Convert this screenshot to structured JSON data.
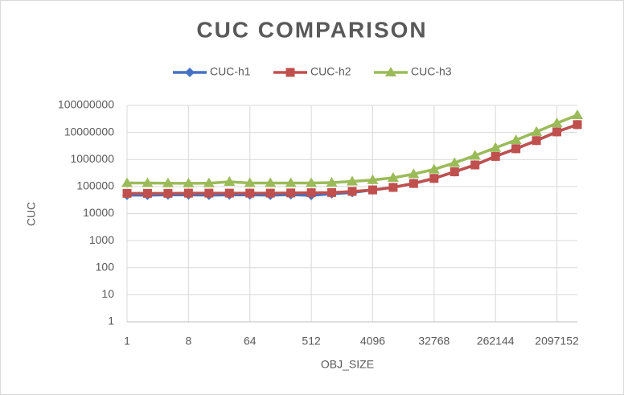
{
  "chart_data": {
    "type": "line",
    "title": "CUC COMPARISON",
    "x_label": "OBJ_SIZE",
    "y_label": "CUC",
    "categories": [
      1,
      null,
      null,
      8,
      null,
      null,
      64,
      null,
      null,
      512,
      null,
      null,
      4096,
      null,
      null,
      32768,
      null,
      null,
      262144,
      null,
      null,
      2097152,
      null
    ],
    "series": [
      {
        "name": "CUC-h1",
        "color": "#4472c4",
        "marker": "diamond",
        "values": [
          48000,
          48000,
          49000,
          49000,
          48000,
          49000,
          49000,
          48000,
          50000,
          47000,
          54000,
          60000,
          75000,
          93000,
          130000,
          200000,
          350000,
          630000,
          1300000,
          2500000,
          5000000,
          10500000,
          19500000
        ]
      },
      {
        "name": "CUC-h2",
        "color": "#c0504d",
        "marker": "square",
        "values": [
          56000,
          56000,
          56000,
          57000,
          57000,
          57000,
          57000,
          57000,
          58000,
          59000,
          60000,
          66000,
          75000,
          93000,
          130000,
          200000,
          350000,
          630000,
          1300000,
          2500000,
          5000000,
          10500000,
          19500000
        ]
      },
      {
        "name": "CUC-h3",
        "color": "#9bbb59",
        "marker": "triangle",
        "values": [
          135000,
          135000,
          133000,
          132000,
          133000,
          150000,
          135000,
          135000,
          135000,
          135000,
          140000,
          155000,
          175000,
          210000,
          290000,
          430000,
          750000,
          1400000,
          2700000,
          5200000,
          10500000,
          22000000,
          44000000
        ]
      }
    ],
    "log_scale": true,
    "ylim": [
      1,
      100000000
    ],
    "yticks": [
      1,
      10,
      100,
      1000,
      10000,
      100000,
      1000000,
      10000000,
      100000000
    ],
    "grid": true,
    "legend": "top"
  }
}
